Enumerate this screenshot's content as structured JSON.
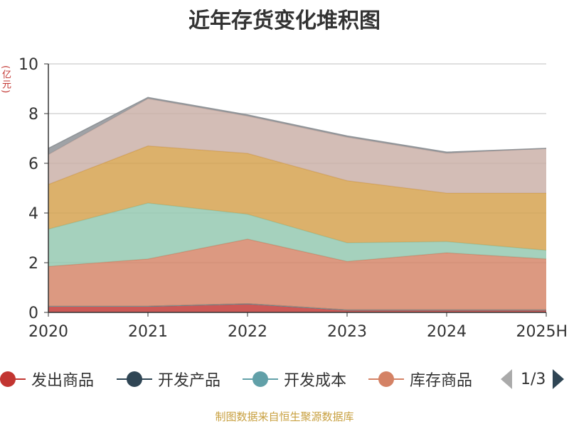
{
  "chart_data": {
    "type": "area",
    "stacked": true,
    "title": "近年存货变化堆积图",
    "ylabel": "(亿元)",
    "xlabel": "",
    "ylim": [
      0,
      10
    ],
    "yticks": [
      0,
      2,
      4,
      6,
      8,
      10
    ],
    "categories": [
      "2020",
      "2021",
      "2022",
      "2023",
      "2024",
      "2025H"
    ],
    "grid": true,
    "series": [
      {
        "name": "发出商品",
        "color": "#c23531",
        "values": [
          0.25,
          0.25,
          0.35,
          0.1,
          0.1,
          0.1
        ]
      },
      {
        "name": "开发产品",
        "color": "#2f4554",
        "values": [
          0.0,
          0.0,
          0.0,
          0.0,
          0.0,
          0.0
        ]
      },
      {
        "name": "开发成本",
        "color": "#61a0a8",
        "values": [
          0.0,
          0.0,
          0.0,
          0.0,
          0.0,
          0.0
        ]
      },
      {
        "name": "库存商品",
        "color": "#d48265",
        "values": [
          1.6,
          1.9,
          2.6,
          1.95,
          2.3,
          2.05
        ]
      },
      {
        "name": "",
        "color": "#91c7ae",
        "values": [
          1.5,
          2.25,
          1.0,
          0.75,
          0.45,
          0.35
        ]
      },
      {
        "name": "",
        "color": "#d4a04b",
        "values": [
          1.8,
          2.3,
          2.45,
          2.5,
          1.95,
          2.3
        ]
      },
      {
        "name": "",
        "color": "#c9aea6",
        "values": [
          1.2,
          1.9,
          1.5,
          1.75,
          1.6,
          1.8
        ]
      },
      {
        "name": "",
        "color": "#8a8e92",
        "values": [
          0.25,
          0.05,
          0.05,
          0.05,
          0.05,
          0.0
        ]
      }
    ]
  },
  "legend": {
    "items": [
      {
        "label": "发出商品",
        "color": "#c23531"
      },
      {
        "label": "开发产品",
        "color": "#2f4554"
      },
      {
        "label": "开发成本",
        "color": "#61a0a8"
      },
      {
        "label": "库存商品",
        "color": "#d48265"
      }
    ],
    "page_info": "1/3"
  },
  "source": "制图数据来自恒生聚源数据库"
}
